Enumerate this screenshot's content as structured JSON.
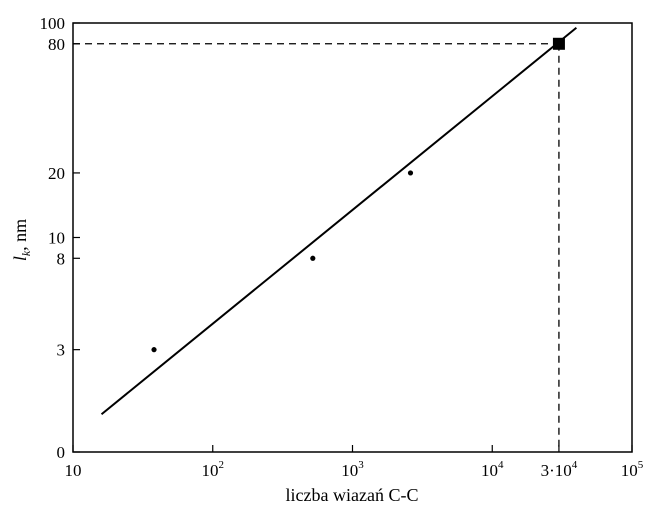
{
  "chart_data": {
    "type": "scatter",
    "xlabel": "liczba wiazań C-C",
    "ylabel_main": "l",
    "ylabel_sub": "k",
    "ylabel_unit": ", nm",
    "xscale": "log",
    "yscale": "log",
    "xlim": [
      10,
      100000
    ],
    "x_ticks": [
      {
        "value": 10,
        "base": "10",
        "exp": ""
      },
      {
        "value": 100,
        "base": "10",
        "exp": "2"
      },
      {
        "value": 1000,
        "base": "10",
        "exp": "3"
      },
      {
        "value": 10000,
        "base": "10",
        "exp": "4"
      },
      {
        "value": 30000,
        "base": "3·10",
        "exp": "4"
      },
      {
        "value": 100000,
        "base": "10",
        "exp": "5"
      }
    ],
    "y_ticks": [
      {
        "value": 1,
        "label": "0"
      },
      {
        "value": 3,
        "label": "3"
      },
      {
        "value": 8,
        "label": "8"
      },
      {
        "value": 10,
        "label": "10"
      },
      {
        "value": 20,
        "label": "20"
      },
      {
        "value": 80,
        "label": "80"
      },
      {
        "value": 100,
        "label": "100"
      }
    ],
    "points": [
      {
        "x": 38,
        "y": 3
      },
      {
        "x": 520,
        "y": 8
      },
      {
        "x": 2600,
        "y": 20
      }
    ],
    "highlight_point": {
      "x": 30000,
      "y": 80
    },
    "fit_line": {
      "x": [
        16,
        40000
      ],
      "y": [
        1.5,
        95
      ]
    },
    "grid": false
  }
}
